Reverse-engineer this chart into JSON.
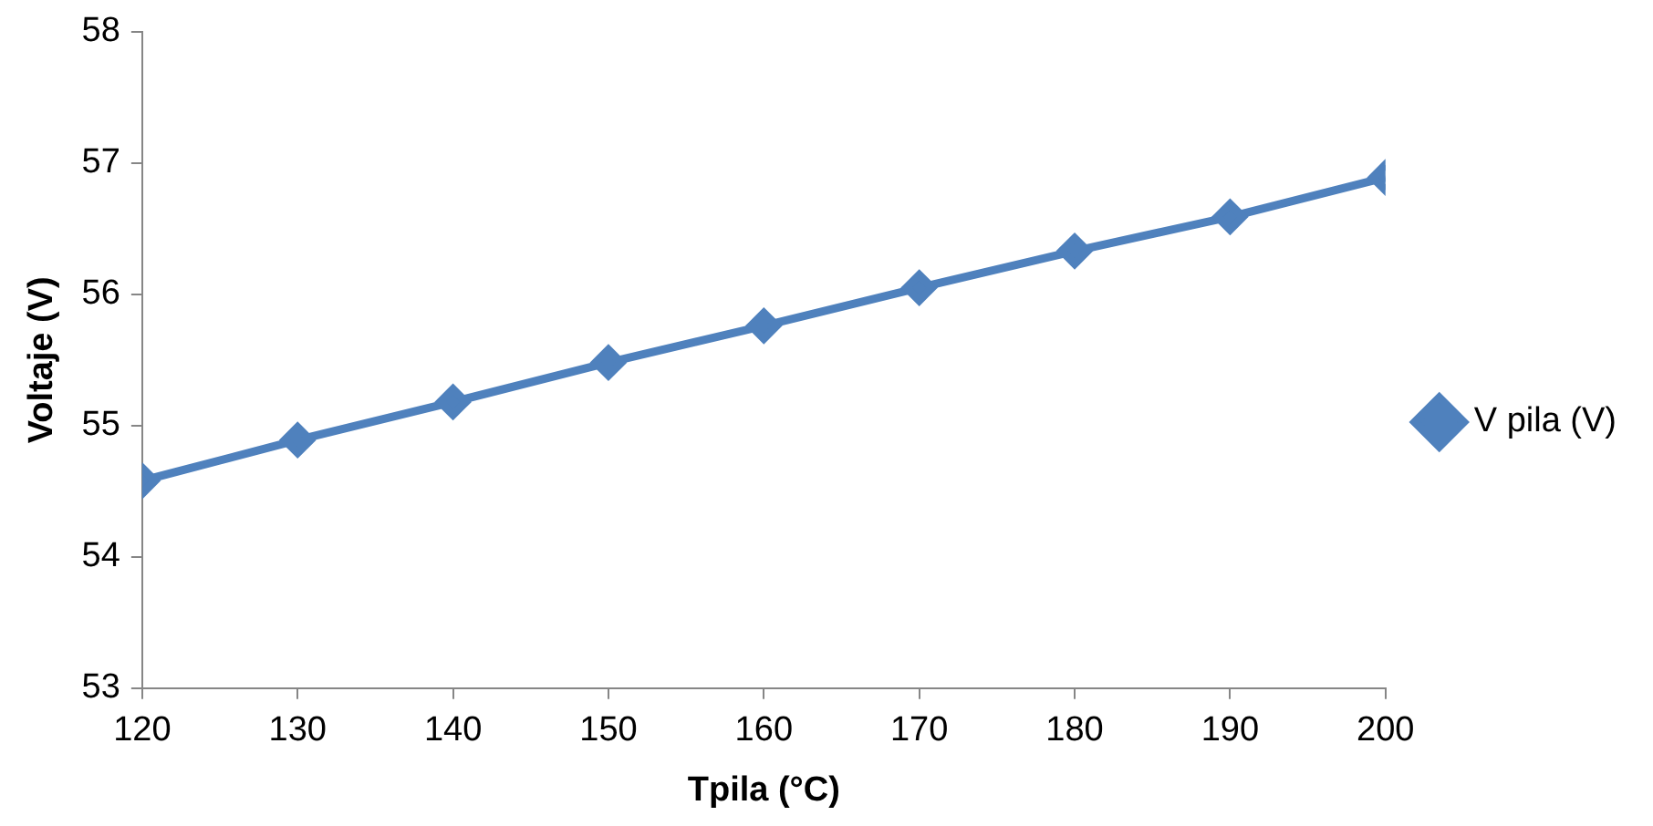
{
  "chart_data": {
    "type": "line",
    "xlabel": "Tpila (°C)",
    "ylabel": "Voltaje (V)",
    "x": [
      120,
      130,
      140,
      150,
      160,
      170,
      180,
      190,
      200
    ],
    "series": [
      {
        "name": "V pila (V)",
        "color": "#4f81bd",
        "values": [
          54.58,
          54.89,
          55.18,
          55.48,
          55.76,
          56.05,
          56.33,
          56.59,
          56.89
        ]
      }
    ],
    "xlim": [
      120,
      200
    ],
    "xticks": [
      120,
      130,
      140,
      150,
      160,
      170,
      180,
      190,
      200
    ],
    "ylim": [
      53,
      58
    ],
    "yticks": [
      53,
      54,
      55,
      56,
      57,
      58
    ],
    "grid": false,
    "legend": "right",
    "marker": "diamond",
    "line_style": "solid"
  }
}
